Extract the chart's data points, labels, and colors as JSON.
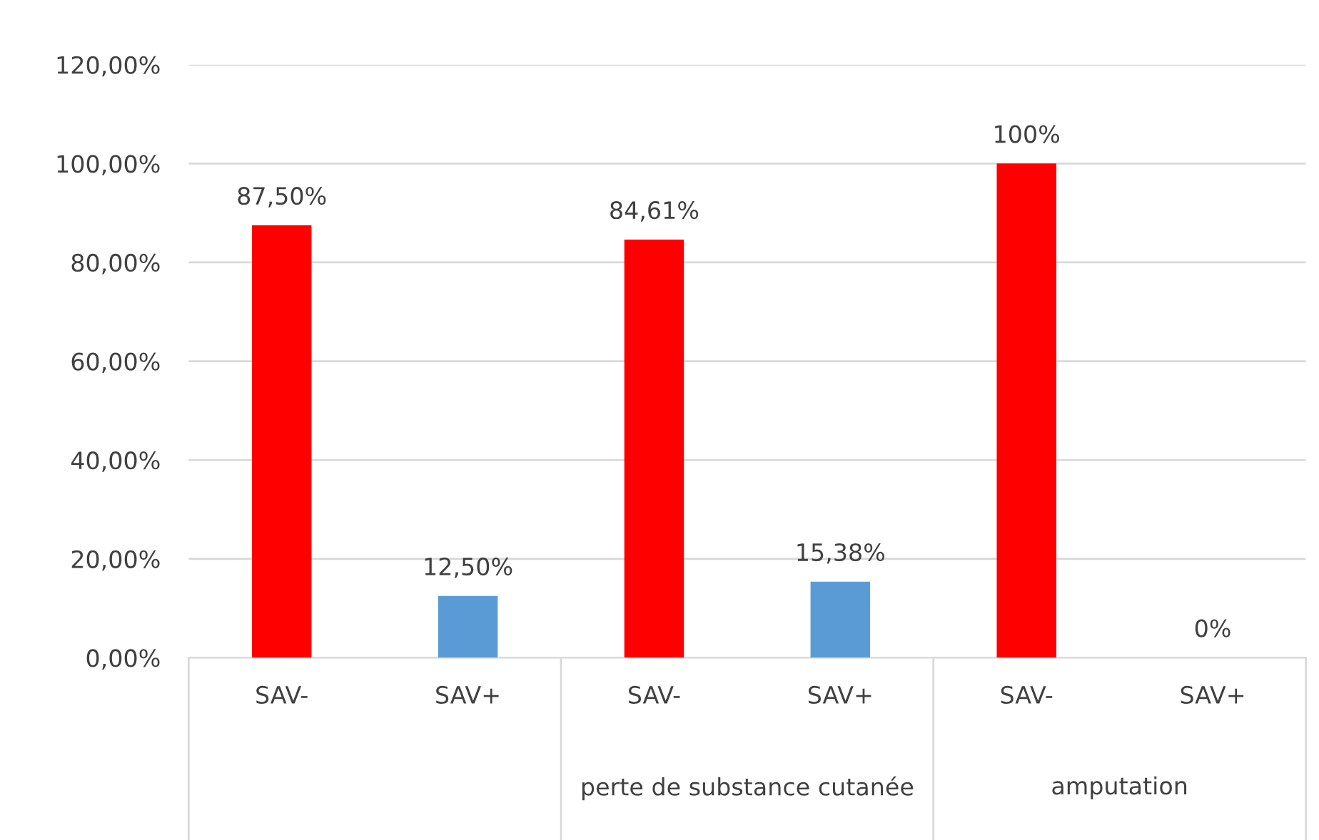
{
  "chart_data": {
    "type": "bar",
    "categories": [
      "SAV-",
      "SAV+",
      "SAV-",
      "SAV+",
      "SAV-",
      "SAV+"
    ],
    "values": [
      87.5,
      12.5,
      84.61,
      15.38,
      100,
      0
    ],
    "colors": [
      "#ff0000",
      "#5b9bd5",
      "#ff0000",
      "#5b9bd5",
      "#ff0000",
      "#5b9bd5"
    ],
    "value_labels": [
      "87,50%",
      "12,50%",
      "84,61%",
      "15,38%",
      "100%",
      "0%"
    ],
    "annotations": [
      "perte de substance cutanée",
      "amputation"
    ],
    "ylim": [
      0,
      120
    ],
    "yticks": [
      {
        "value": 0,
        "label": "0,00%"
      },
      {
        "value": 20,
        "label": "20,00%"
      },
      {
        "value": 40,
        "label": "40,00%"
      },
      {
        "value": 60,
        "label": "60,00%"
      },
      {
        "value": 80,
        "label": "80,00%"
      },
      {
        "value": 100,
        "label": "100,00%"
      },
      {
        "value": 120,
        "label": "120,00%"
      }
    ],
    "grid": "y",
    "legend": false
  }
}
